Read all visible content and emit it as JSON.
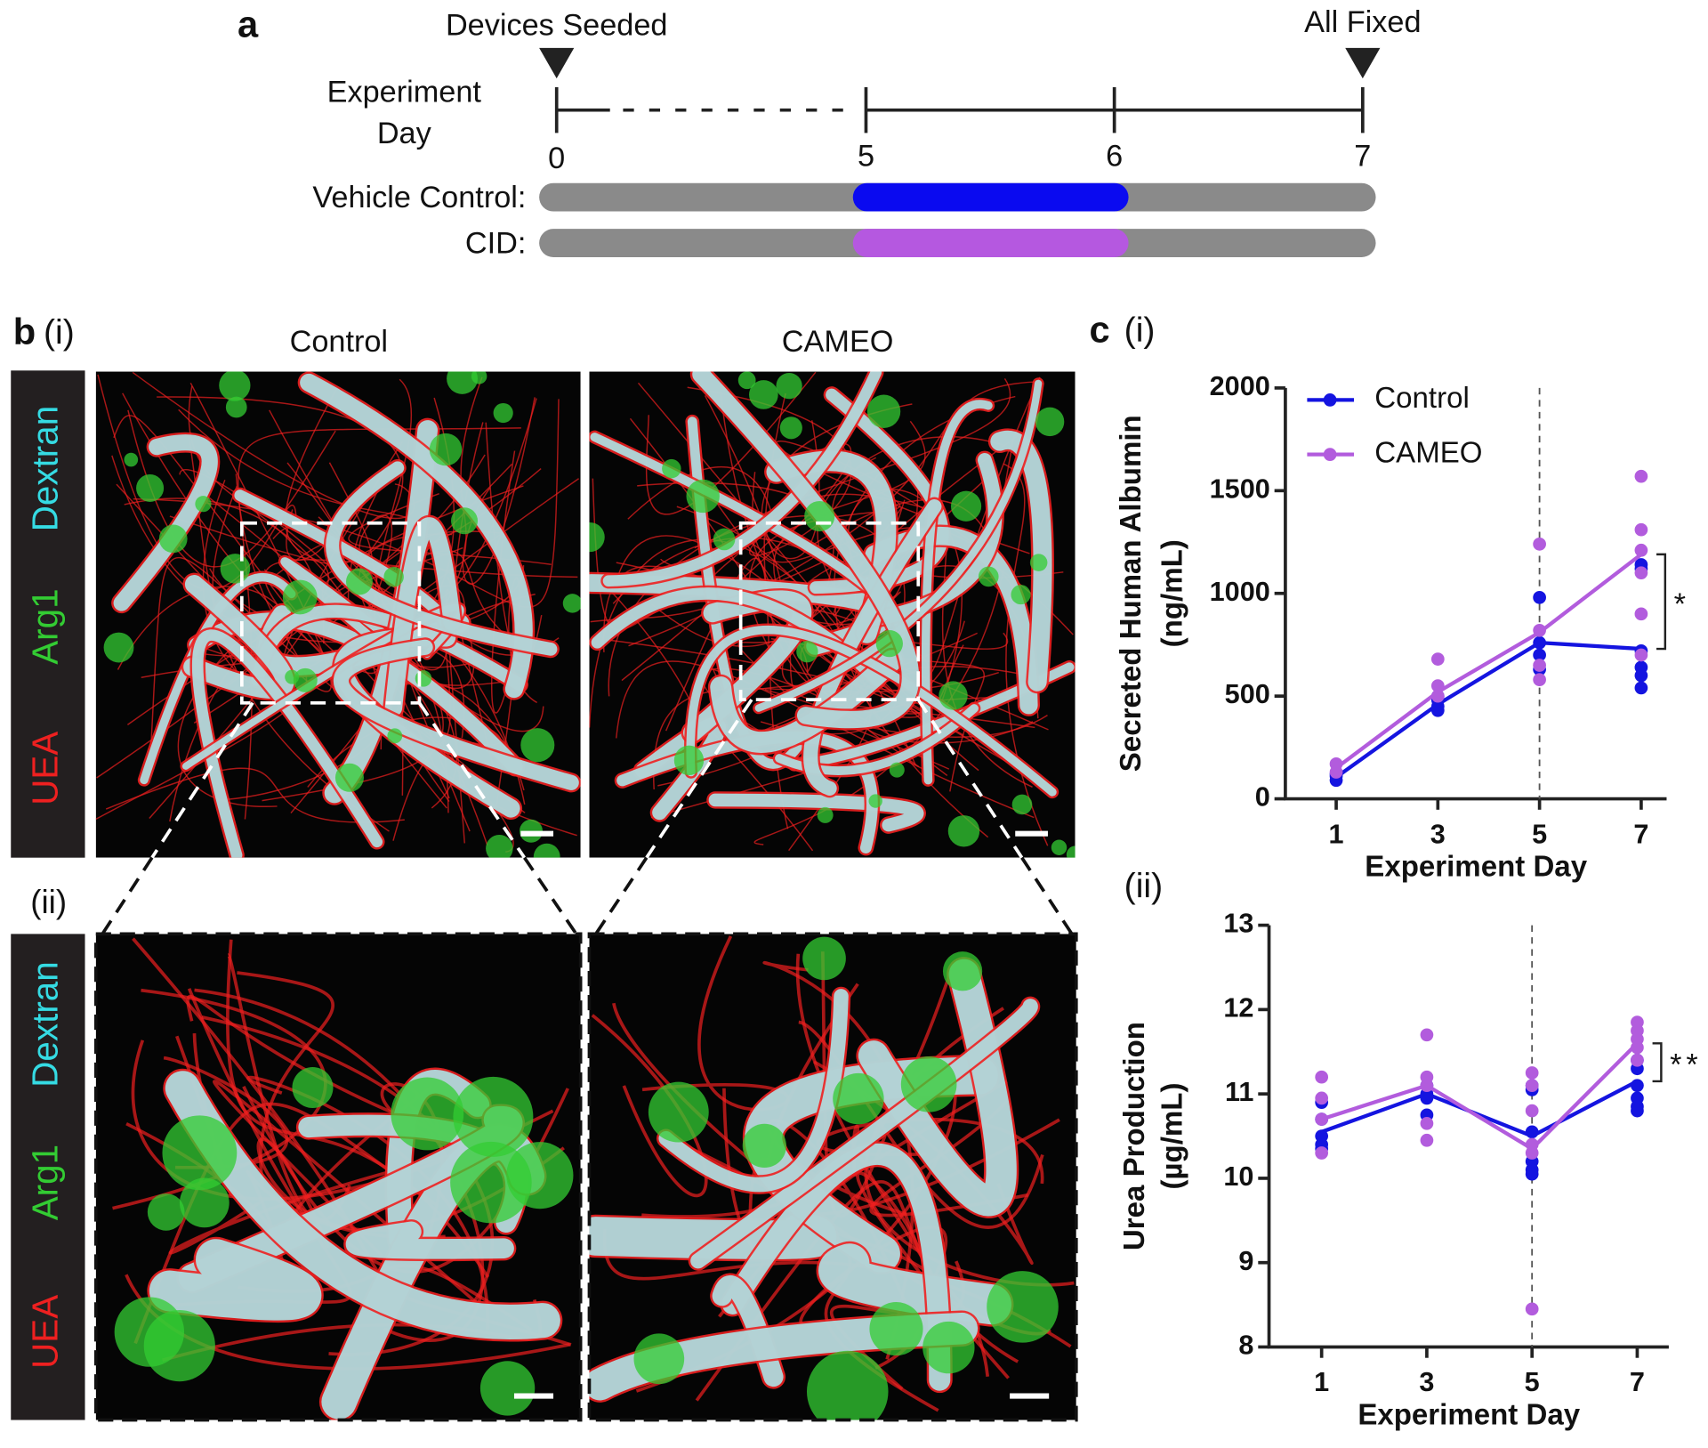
{
  "panel_a": {
    "label": "a",
    "start_event": "Devices Seeded",
    "end_event": "All Fixed",
    "axis_label": [
      "Experiment",
      "Day"
    ],
    "day_ticks": [
      0,
      5,
      6,
      7
    ],
    "rows": [
      {
        "label": "Vehicle Control:",
        "color": "#0a0af0"
      },
      {
        "label": "CID:",
        "color": "#b558e0"
      }
    ]
  },
  "panel_b": {
    "label": "b",
    "sub_i": "(i)",
    "sub_ii": "(ii)",
    "conditions": [
      "Control",
      "CAMEO"
    ],
    "stains": [
      {
        "name": "Dextran",
        "color": "#35dbe3"
      },
      {
        "name": "Arg1",
        "color": "#33cc33"
      },
      {
        "name": "UEA",
        "color": "#ee2020"
      }
    ]
  },
  "panel_c": {
    "label": "c",
    "sub_i": "(i)",
    "sub_ii": "(ii)"
  },
  "chart_data": [
    {
      "type": "line",
      "ylabel": [
        "Secreted Human Albumin",
        "(ng/mL)"
      ],
      "xlabel": "Experiment Day",
      "x": [
        1,
        3,
        5,
        7
      ],
      "xlim": [
        0,
        7.5
      ],
      "xticks": [
        1,
        3,
        5,
        7
      ],
      "ylim": [
        0,
        2000
      ],
      "yticks": [
        0,
        500,
        1000,
        1500,
        2000
      ],
      "vline": 5,
      "legend": "top-left",
      "series": [
        {
          "name": "Control",
          "color": "#1414e0",
          "values": [
            105,
            460,
            760,
            730
          ],
          "points": {
            "x": [
              1,
              1,
              1,
              3,
              3,
              3,
              3,
              5,
              5,
              5,
              5,
              7,
              7,
              7,
              7,
              7,
              7
            ],
            "y": [
              90,
              110,
              120,
              430,
              450,
              480,
              500,
              980,
              760,
              700,
              630,
              1140,
              1120,
              720,
              640,
              600,
              540
            ]
          }
        },
        {
          "name": "CAMEO",
          "color": "#b25cdd",
          "values": [
            150,
            520,
            810,
            1190
          ],
          "points": {
            "x": [
              1,
              1,
              3,
              3,
              3,
              5,
              5,
              5,
              5,
              7,
              7,
              7,
              7,
              7,
              7
            ],
            "y": [
              170,
              130,
              680,
              550,
              500,
              1240,
              820,
              580,
              650,
              1570,
              1310,
              1210,
              1100,
              900,
              700
            ]
          }
        }
      ],
      "significance": {
        "label": "*",
        "x": 7,
        "between": [
          730,
          1190
        ]
      }
    },
    {
      "type": "line",
      "ylabel": [
        "Urea Production",
        "(µg/mL)"
      ],
      "xlabel": "Experiment Day",
      "x": [
        1,
        3,
        5,
        7
      ],
      "xlim": [
        0,
        7.6
      ],
      "xticks": [
        1,
        3,
        5,
        7
      ],
      "ylim": [
        8,
        13
      ],
      "yticks": [
        8,
        9,
        10,
        11,
        12,
        13
      ],
      "vline": 5,
      "series": [
        {
          "color": "#1414e0",
          "values": [
            10.55,
            11.0,
            10.5,
            11.15
          ],
          "points": {
            "x": [
              1,
              1,
              1,
              1,
              1,
              3,
              3,
              3,
              3,
              5,
              5,
              5,
              5,
              5,
              5,
              7,
              7,
              7,
              7,
              7,
              7
            ],
            "y": [
              10.9,
              10.7,
              10.5,
              10.4,
              10.35,
              11.1,
              11.0,
              10.95,
              10.75,
              11.1,
              11.05,
              10.55,
              10.2,
              10.1,
              10.05,
              11.4,
              11.3,
              11.1,
              10.95,
              10.85,
              10.8
            ]
          }
        },
        {
          "color": "#b25cdd",
          "values": [
            10.7,
            11.1,
            10.35,
            11.6
          ],
          "points": {
            "x": [
              1,
              1,
              1,
              1,
              3,
              3,
              3,
              3,
              3,
              5,
              5,
              5,
              5,
              5,
              5,
              7,
              7,
              7,
              7,
              7
            ],
            "y": [
              11.2,
              10.95,
              10.7,
              10.3,
              11.7,
              11.2,
              11.1,
              10.65,
              10.45,
              11.25,
              11.1,
              10.8,
              10.4,
              10.3,
              8.45,
              11.85,
              11.75,
              11.65,
              11.55,
              11.4
            ]
          }
        }
      ],
      "significance": {
        "label": "**",
        "x": 7,
        "between": [
          11.15,
          11.6
        ]
      }
    }
  ]
}
